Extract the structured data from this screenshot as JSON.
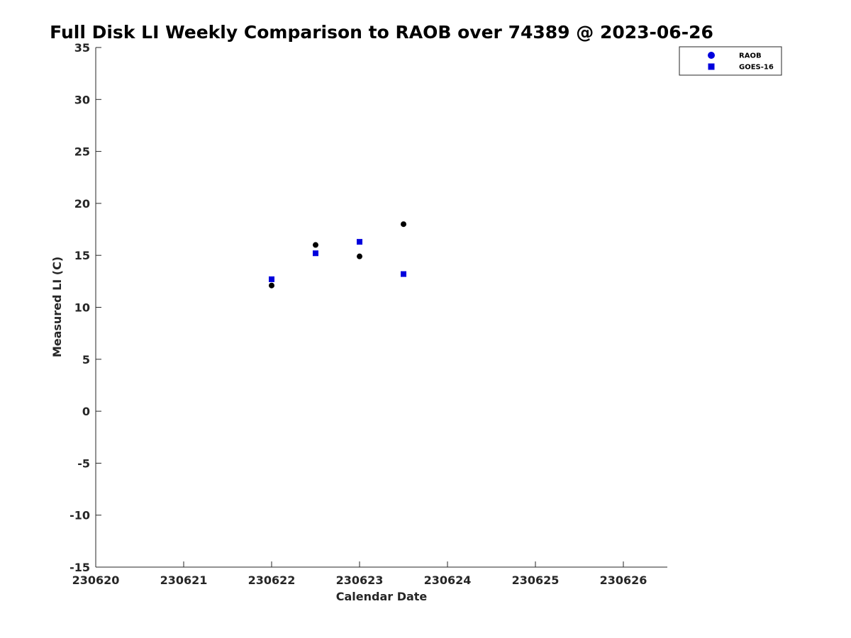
{
  "chart_data": {
    "type": "scatter",
    "title": "Full Disk LI Weekly Comparison to RAOB over 74389 @ 2023-06-26",
    "xlabel": "Calendar Date",
    "ylabel": "Measured LI (C)",
    "xlim": [
      "2023-06-20",
      "2023-06-26 12:00"
    ],
    "ylim": [
      -15,
      35
    ],
    "x_ticks": [
      "230620",
      "230621",
      "230622",
      "230623",
      "230624",
      "230625",
      "230626"
    ],
    "y_ticks": [
      "35",
      "30",
      "25",
      "20",
      "15",
      "10",
      "5",
      "0",
      "-5",
      "-10",
      "-15"
    ],
    "grid": false,
    "legend_position": "top-right",
    "series": [
      {
        "name": "RAOB",
        "marker": "circle",
        "legend_color": "#0000dd",
        "point_color": "#000000",
        "points": [
          {
            "x": "2023-06-22 00:00",
            "y": 12.1
          },
          {
            "x": "2023-06-22 12:00",
            "y": 16.0
          },
          {
            "x": "2023-06-23 00:00",
            "y": 14.9
          },
          {
            "x": "2023-06-23 12:00",
            "y": 18.0
          }
        ]
      },
      {
        "name": "GOES-16",
        "marker": "square",
        "legend_color": "#0000dd",
        "point_color": "#0000dd",
        "points": [
          {
            "x": "2023-06-22 00:00",
            "y": 12.7
          },
          {
            "x": "2023-06-22 12:00",
            "y": 15.2
          },
          {
            "x": "2023-06-23 00:00",
            "y": 16.3
          },
          {
            "x": "2023-06-23 12:00",
            "y": 13.2
          }
        ]
      }
    ]
  }
}
